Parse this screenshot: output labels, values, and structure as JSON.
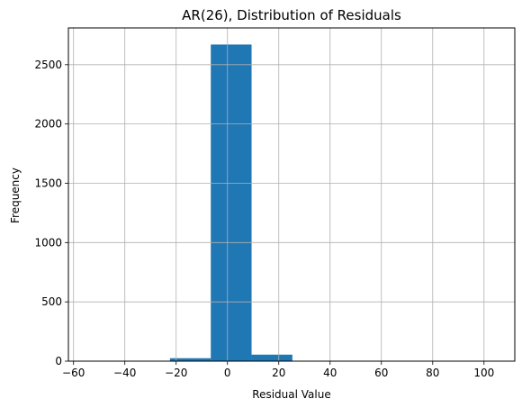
{
  "chart_data": {
    "type": "bar",
    "title": "AR(26), Distribution of Residuals",
    "xlabel": "Residual Value",
    "ylabel": "Frequency",
    "xlim": [
      -62,
      112
    ],
    "ylim": [
      0,
      2810
    ],
    "xticks": [
      -60,
      -40,
      -20,
      0,
      20,
      40,
      60,
      80,
      100
    ],
    "yticks": [
      0,
      500,
      1000,
      1500,
      2000,
      2500
    ],
    "grid": true,
    "bar_color": "#1f77b4",
    "bins": [
      {
        "x0": -54.2,
        "x1": -38.3,
        "count": 1
      },
      {
        "x0": -38.3,
        "x1": -22.4,
        "count": 2
      },
      {
        "x0": -22.4,
        "x1": -6.5,
        "count": 25
      },
      {
        "x0": -6.5,
        "x1": 9.4,
        "count": 2670
      },
      {
        "x0": 9.4,
        "x1": 25.3,
        "count": 55
      },
      {
        "x0": 25.3,
        "x1": 41.2,
        "count": 3
      },
      {
        "x0": 41.2,
        "x1": 57.1,
        "count": 1
      },
      {
        "x0": 57.1,
        "x1": 73.0,
        "count": 0
      },
      {
        "x0": 73.0,
        "x1": 88.9,
        "count": 0
      },
      {
        "x0": 88.9,
        "x1": 104.8,
        "count": 1
      }
    ]
  }
}
